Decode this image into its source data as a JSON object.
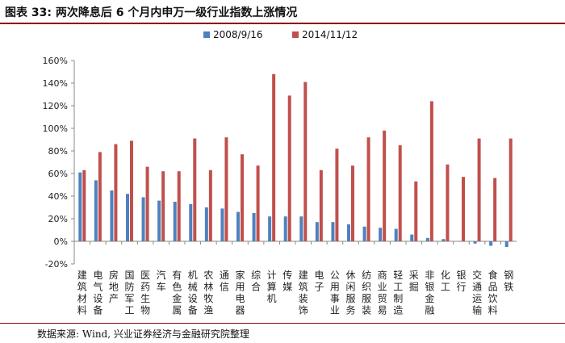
{
  "title": "图表 33: 两次降息后 6 个月内申万一级行业指数上涨情况",
  "source": "数据来源: Wind, 兴业证券经济与金融研究院整理",
  "chart_data": {
    "type": "bar",
    "title": "",
    "xlabel": "",
    "ylabel": "",
    "ylim": [
      -20,
      160
    ],
    "yticks": [
      -20,
      0,
      20,
      40,
      60,
      80,
      100,
      120,
      140,
      160
    ],
    "ytick_labels": [
      "-20%",
      "0%",
      "20%",
      "40%",
      "60%",
      "80%",
      "100%",
      "120%",
      "140%",
      "160%"
    ],
    "legend_position": "top-center",
    "categories": [
      "建筑材料",
      "电气设备",
      "房地产",
      "国防军工",
      "医药生物",
      "汽车",
      "有色金属",
      "机械设备",
      "农林牧渔",
      "通信",
      "家用电器",
      "综合",
      "计算机",
      "传媒",
      "建筑装饰",
      "电子",
      "公用事业",
      "休闲服务",
      "纺织服装",
      "商业贸易",
      "轻工制造",
      "采掘",
      "非银金融",
      "化工",
      "银行",
      "交通运输",
      "食品饮料",
      "钢铁"
    ],
    "series": [
      {
        "name": "2008/9/16",
        "color": "#4f81bd",
        "values": [
          61,
          54,
          45,
          42,
          39,
          36,
          35,
          33,
          30,
          29,
          26,
          25,
          22,
          22,
          22,
          17,
          17,
          15,
          13,
          12,
          11,
          6,
          3,
          2,
          0,
          -2,
          -4,
          -5
        ]
      },
      {
        "name": "2014/11/12",
        "color": "#c0504d",
        "values": [
          63,
          79,
          86,
          89,
          66,
          62,
          62,
          91,
          63,
          92,
          77,
          67,
          148,
          129,
          141,
          63,
          82,
          67,
          92,
          98,
          85,
          53,
          124,
          68,
          57,
          91,
          56,
          91
        ]
      }
    ]
  }
}
